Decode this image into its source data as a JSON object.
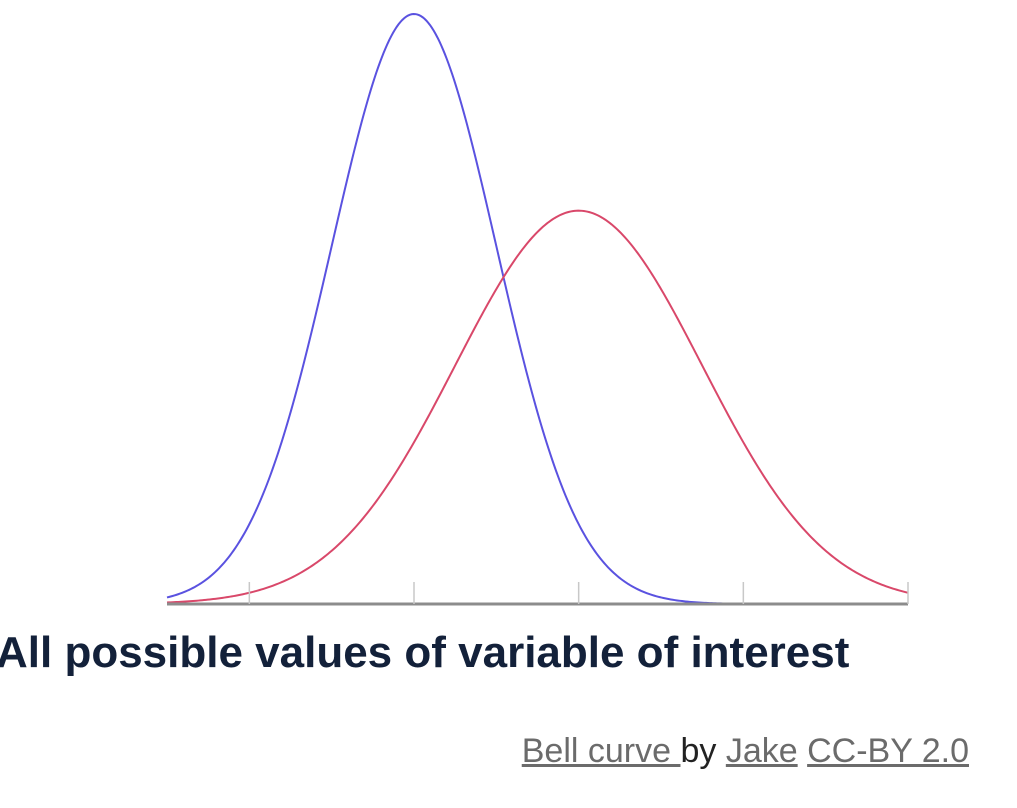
{
  "chart_data": {
    "type": "line",
    "title": "",
    "xlabel": "All possible values of variable of interest",
    "ylabel": "",
    "xlim": [
      -3,
      6
    ],
    "ylim": [
      0,
      1.5
    ],
    "grid": false,
    "legend": "none",
    "x_ticks": [
      -2,
      0,
      2,
      4,
      6
    ],
    "series": [
      {
        "mean": 0,
        "sd": 1,
        "peak": 1.5,
        "color": "#5a52e0"
      },
      {
        "mean": 2,
        "sd": 1.5,
        "peak": 1.0,
        "color": "#d9486a"
      }
    ]
  },
  "attribution": {
    "link_label": "Bell curve ",
    "by_text": "by ",
    "author_label": "Jake",
    "license_label": "CC-BY 2.0"
  }
}
